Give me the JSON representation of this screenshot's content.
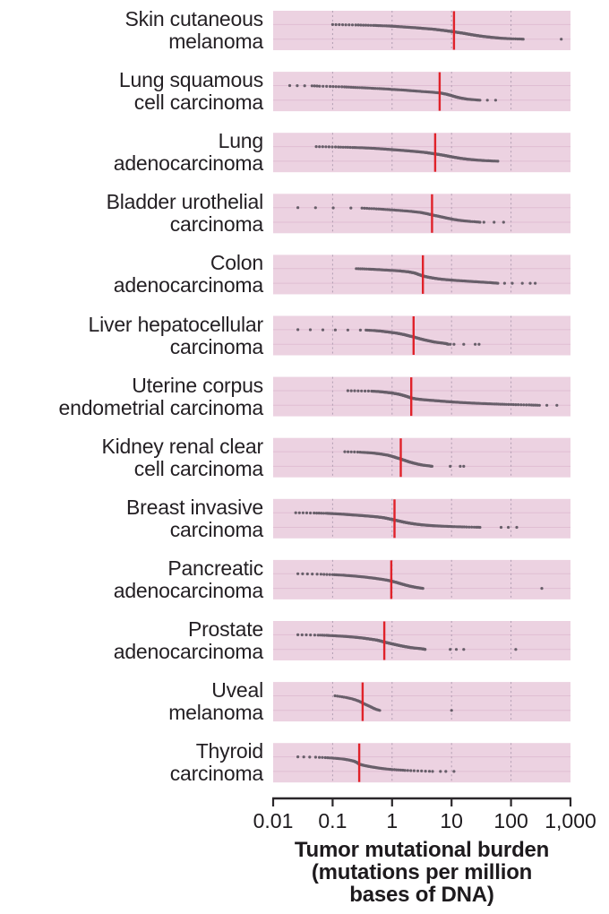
{
  "style": {
    "band_color": "#ecd2e1",
    "band_guide_color": "#e0bed3",
    "grid_color": "#a795aa",
    "dot_color": "#56505a",
    "median_color": "#e0222a",
    "axis_color": "#2a272a",
    "text_color": "#231f23"
  },
  "chart_data": {
    "type": "scatter",
    "x_scale": "log",
    "xlim": [
      0.01,
      1000
    ],
    "grid": "dashed-vertical-decades",
    "xlabel": "Tumor mutational burden (mutations per million bases of DNA)",
    "xlabel_lines": [
      "Tumor mutational burden",
      "(mutations per million",
      "bases of DNA)"
    ],
    "x_ticks": [
      {
        "label": "0.01",
        "value": 0.01
      },
      {
        "label": "0.1",
        "value": 0.1
      },
      {
        "label": "1",
        "value": 1
      },
      {
        "label": "10",
        "value": 10
      },
      {
        "label": "100",
        "value": 100
      },
      {
        "label": "1,000",
        "value": 1000
      }
    ],
    "marker": "dot",
    "median_marker": "red-vertical-line",
    "series": [
      {
        "id": "skin-cutaneous-melanoma",
        "label_lines": [
          "Skin cutaneous",
          "melanoma"
        ],
        "median": 11,
        "n_points": 240,
        "quantiles": [
          [
            0,
            0.1
          ],
          [
            3,
            0.25
          ],
          [
            6,
            0.5
          ],
          [
            10,
            0.9
          ],
          [
            15,
            1.4
          ],
          [
            22,
            2.5
          ],
          [
            32,
            5
          ],
          [
            42,
            8
          ],
          [
            50,
            11
          ],
          [
            60,
            16
          ],
          [
            70,
            22
          ],
          [
            80,
            32
          ],
          [
            88,
            48
          ],
          [
            93,
            65
          ],
          [
            96,
            85
          ],
          [
            98,
            112
          ],
          [
            99.5,
            150
          ],
          [
            100,
            160
          ]
        ],
        "outliers": [
          700
        ]
      },
      {
        "id": "lung-squamous-cell-carcinoma",
        "label_lines": [
          "Lung squamous",
          "cell carcinoma"
        ],
        "median": 6.3,
        "n_points": 150,
        "quantiles": [
          [
            0,
            0.019
          ],
          [
            2,
            0.045
          ],
          [
            4,
            0.06
          ],
          [
            6,
            0.09
          ],
          [
            9,
            0.15
          ],
          [
            12,
            0.22
          ],
          [
            15,
            0.32
          ],
          [
            18,
            0.45
          ],
          [
            22,
            0.7
          ],
          [
            26,
            1.0
          ],
          [
            32,
            1.7
          ],
          [
            38,
            2.6
          ],
          [
            44,
            4.2
          ],
          [
            50,
            6.3
          ],
          [
            58,
            8
          ],
          [
            66,
            9.5
          ],
          [
            74,
            11
          ],
          [
            82,
            13
          ],
          [
            88,
            15.5
          ],
          [
            93,
            18.5
          ],
          [
            96,
            22
          ],
          [
            98,
            26
          ],
          [
            100,
            30
          ]
        ],
        "outliers": [
          40,
          55
        ]
      },
      {
        "id": "lung-adenocarcinoma",
        "label_lines": [
          "Lung",
          "adenocarcinoma"
        ],
        "median": 5.3,
        "n_points": 220,
        "quantiles": [
          [
            0,
            0.053
          ],
          [
            3,
            0.12
          ],
          [
            6,
            0.22
          ],
          [
            9,
            0.35
          ],
          [
            12,
            0.5
          ],
          [
            16,
            0.7
          ],
          [
            20,
            0.95
          ],
          [
            26,
            1.5
          ],
          [
            33,
            2.4
          ],
          [
            40,
            3.6
          ],
          [
            50,
            5.3
          ],
          [
            60,
            7.5
          ],
          [
            70,
            10
          ],
          [
            80,
            14
          ],
          [
            87,
            19
          ],
          [
            92,
            26
          ],
          [
            96,
            36
          ],
          [
            98,
            46
          ],
          [
            100,
            60
          ]
        ],
        "outliers": []
      },
      {
        "id": "bladder-urothelial-carcinoma",
        "label_lines": [
          "Bladder urothelial",
          "carcinoma"
        ],
        "median": 4.7,
        "n_points": 120,
        "quantiles": [
          [
            0,
            0.026
          ],
          [
            3,
            0.3
          ],
          [
            6,
            0.42
          ],
          [
            9,
            0.58
          ],
          [
            13,
            0.8
          ],
          [
            18,
            1.2
          ],
          [
            25,
            2.0
          ],
          [
            33,
            3.0
          ],
          [
            42,
            3.9
          ],
          [
            50,
            4.7
          ],
          [
            60,
            6.2
          ],
          [
            70,
            8.0
          ],
          [
            80,
            10.5
          ],
          [
            86,
            13
          ],
          [
            91,
            16.5
          ],
          [
            95,
            21
          ],
          [
            98,
            27
          ],
          [
            100,
            30
          ]
        ],
        "outliers": [
          35,
          52,
          75
        ]
      },
      {
        "id": "colon-adenocarcinoma",
        "label_lines": [
          "Colon",
          "adenocarcinoma"
        ],
        "median": 3.3,
        "n_points": 200,
        "quantiles": [
          [
            0,
            0.25
          ],
          [
            3,
            0.4
          ],
          [
            6,
            0.55
          ],
          [
            10,
            0.8
          ],
          [
            15,
            1.3
          ],
          [
            22,
            1.9
          ],
          [
            30,
            2.4
          ],
          [
            40,
            2.8
          ],
          [
            50,
            3.3
          ],
          [
            58,
            4.0
          ],
          [
            64,
            4.8
          ],
          [
            69,
            5.8
          ],
          [
            73,
            7
          ],
          [
            77,
            9
          ],
          [
            81,
            12
          ],
          [
            85,
            17
          ],
          [
            89,
            24
          ],
          [
            93,
            34
          ],
          [
            96,
            45
          ],
          [
            100,
            60
          ]
        ],
        "outliers": [
          78,
          105,
          155,
          210,
          255
        ]
      },
      {
        "id": "liver-hepatocellular-carcinoma",
        "label_lines": [
          "Liver hepatocellular",
          "carcinoma"
        ],
        "median": 2.3,
        "n_points": 180,
        "quantiles": [
          [
            0,
            0.026
          ],
          [
            3,
            0.35
          ],
          [
            6,
            0.5
          ],
          [
            10,
            0.65
          ],
          [
            16,
            0.85
          ],
          [
            24,
            1.2
          ],
          [
            34,
            1.6
          ],
          [
            42,
            1.9
          ],
          [
            50,
            2.3
          ],
          [
            60,
            2.8
          ],
          [
            70,
            3.5
          ],
          [
            78,
            4.3
          ],
          [
            85,
            5.2
          ],
          [
            90,
            6.5
          ],
          [
            95,
            8
          ],
          [
            100,
            8.8
          ]
        ],
        "outliers": [
          9.5,
          11,
          16,
          25,
          29
        ]
      },
      {
        "id": "uterine-corpus-endometrial-carcinoma",
        "label_lines": [
          "Uterine corpus",
          "endometrial carcinoma"
        ],
        "median": 2.1,
        "n_points": 230,
        "quantiles": [
          [
            0,
            0.18
          ],
          [
            3,
            0.45
          ],
          [
            6,
            0.6
          ],
          [
            10,
            0.75
          ],
          [
            16,
            1.0
          ],
          [
            24,
            1.3
          ],
          [
            34,
            1.6
          ],
          [
            42,
            1.85
          ],
          [
            50,
            2.1
          ],
          [
            56,
            2.5
          ],
          [
            61,
            3.2
          ],
          [
            66,
            4.5
          ],
          [
            70,
            6
          ],
          [
            74,
            8
          ],
          [
            78,
            11
          ],
          [
            82,
            16
          ],
          [
            86,
            25
          ],
          [
            89,
            38
          ],
          [
            92,
            60
          ],
          [
            94,
            85
          ],
          [
            96,
            130
          ],
          [
            98,
            210
          ],
          [
            100,
            300
          ]
        ],
        "outliers": [
          400,
          590
        ]
      },
      {
        "id": "kidney-renal-clear-cell-carcinoma",
        "label_lines": [
          "Kidney renal clear",
          "cell carcinoma"
        ],
        "median": 1.4,
        "n_points": 150,
        "quantiles": [
          [
            0,
            0.16
          ],
          [
            3,
            0.28
          ],
          [
            6,
            0.38
          ],
          [
            10,
            0.5
          ],
          [
            16,
            0.65
          ],
          [
            24,
            0.85
          ],
          [
            34,
            1.05
          ],
          [
            42,
            1.2
          ],
          [
            50,
            1.4
          ],
          [
            60,
            1.65
          ],
          [
            70,
            1.95
          ],
          [
            78,
            2.3
          ],
          [
            85,
            2.7
          ],
          [
            90,
            3.1
          ],
          [
            94,
            3.6
          ],
          [
            97,
            4.2
          ],
          [
            100,
            4.7
          ]
        ],
        "outliers": [
          9.5,
          14,
          16
        ]
      },
      {
        "id": "breast-invasive-carcinoma",
        "label_lines": [
          "Breast invasive",
          "carcinoma"
        ],
        "median": 1.1,
        "n_points": 260,
        "quantiles": [
          [
            0,
            0.024
          ],
          [
            2,
            0.05
          ],
          [
            4,
            0.08
          ],
          [
            7,
            0.11
          ],
          [
            10,
            0.15
          ],
          [
            14,
            0.2
          ],
          [
            18,
            0.28
          ],
          [
            23,
            0.4
          ],
          [
            28,
            0.55
          ],
          [
            34,
            0.72
          ],
          [
            42,
            0.9
          ],
          [
            50,
            1.1
          ],
          [
            58,
            1.35
          ],
          [
            65,
            1.6
          ],
          [
            72,
            2.0
          ],
          [
            78,
            2.5
          ],
          [
            83,
            3.2
          ],
          [
            87,
            4.2
          ],
          [
            90,
            5.5
          ],
          [
            92,
            7
          ],
          [
            94,
            9
          ],
          [
            96,
            12.5
          ],
          [
            97.5,
            17
          ],
          [
            99,
            25
          ],
          [
            100,
            30
          ]
        ],
        "outliers": [
          68,
          90,
          125
        ]
      },
      {
        "id": "pancreatic-adenocarcinoma",
        "label_lines": [
          "Pancreatic",
          "adenocarcinoma"
        ],
        "median": 0.97,
        "n_points": 150,
        "quantiles": [
          [
            0,
            0.026
          ],
          [
            3,
            0.06
          ],
          [
            6,
            0.1
          ],
          [
            10,
            0.15
          ],
          [
            15,
            0.22
          ],
          [
            21,
            0.32
          ],
          [
            28,
            0.45
          ],
          [
            35,
            0.6
          ],
          [
            42,
            0.78
          ],
          [
            50,
            0.97
          ],
          [
            60,
            1.2
          ],
          [
            70,
            1.45
          ],
          [
            78,
            1.7
          ],
          [
            85,
            2.0
          ],
          [
            90,
            2.3
          ],
          [
            94,
            2.6
          ],
          [
            97,
            2.9
          ],
          [
            100,
            3.3
          ]
        ],
        "outliers": [
          330
        ]
      },
      {
        "id": "prostate-adenocarcinoma",
        "label_lines": [
          "Prostate",
          "adenocarcinoma"
        ],
        "median": 0.74,
        "n_points": 230,
        "quantiles": [
          [
            0,
            0.026
          ],
          [
            2,
            0.055
          ],
          [
            4,
            0.08
          ],
          [
            7,
            0.11
          ],
          [
            11,
            0.16
          ],
          [
            16,
            0.23
          ],
          [
            22,
            0.32
          ],
          [
            29,
            0.42
          ],
          [
            36,
            0.55
          ],
          [
            43,
            0.65
          ],
          [
            50,
            0.74
          ],
          [
            58,
            0.9
          ],
          [
            66,
            1.1
          ],
          [
            74,
            1.35
          ],
          [
            81,
            1.65
          ],
          [
            87,
            2.0
          ],
          [
            91,
            2.4
          ],
          [
            94,
            2.9
          ],
          [
            97,
            3.3
          ],
          [
            100,
            3.6
          ]
        ],
        "outliers": [
          9.5,
          12,
          16,
          120
        ]
      },
      {
        "id": "uveal-melanoma",
        "label_lines": [
          "Uveal",
          "melanoma"
        ],
        "median": 0.32,
        "n_points": 45,
        "quantiles": [
          [
            0,
            0.11
          ],
          [
            6,
            0.14
          ],
          [
            12,
            0.17
          ],
          [
            20,
            0.21
          ],
          [
            30,
            0.25
          ],
          [
            40,
            0.29
          ],
          [
            50,
            0.32
          ],
          [
            62,
            0.37
          ],
          [
            72,
            0.42
          ],
          [
            82,
            0.47
          ],
          [
            90,
            0.52
          ],
          [
            96,
            0.57
          ],
          [
            100,
            0.62
          ]
        ],
        "outliers": [
          10
        ]
      },
      {
        "id": "thyroid-carcinoma",
        "label_lines": [
          "Thyroid",
          "carcinoma"
        ],
        "median": 0.28,
        "n_points": 110,
        "quantiles": [
          [
            0,
            0.026
          ],
          [
            3,
            0.055
          ],
          [
            6,
            0.08
          ],
          [
            10,
            0.11
          ],
          [
            15,
            0.15
          ],
          [
            22,
            0.19
          ],
          [
            30,
            0.23
          ],
          [
            40,
            0.26
          ],
          [
            50,
            0.28
          ],
          [
            58,
            0.33
          ],
          [
            65,
            0.4
          ],
          [
            72,
            0.5
          ],
          [
            78,
            0.62
          ],
          [
            83,
            0.78
          ],
          [
            87,
            1.0
          ],
          [
            90,
            1.3
          ],
          [
            93,
            1.7
          ],
          [
            95,
            2.2
          ],
          [
            97,
            3.0
          ],
          [
            99,
            4.2
          ],
          [
            100,
            4.8
          ]
        ],
        "outliers": [
          6.5,
          8,
          11
        ]
      }
    ]
  }
}
